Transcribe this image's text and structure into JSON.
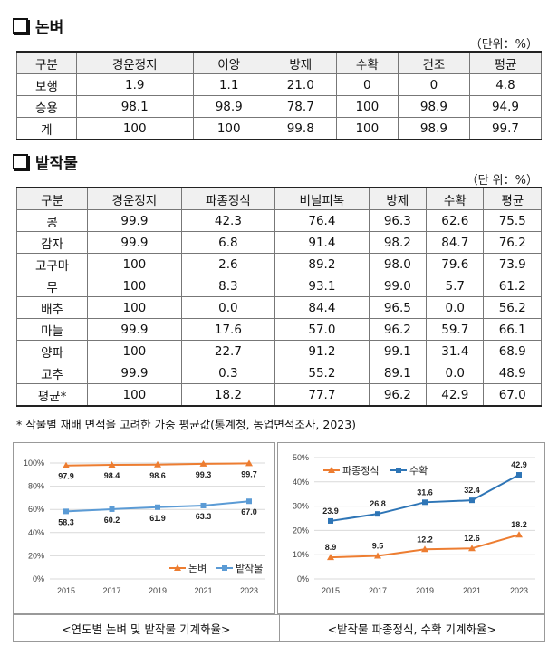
{
  "rice": {
    "title": "논벼",
    "unit": "（단위：%）",
    "headers": [
      "구분",
      "경운정지",
      "이앙",
      "방제",
      "수확",
      "건조",
      "평균"
    ],
    "rows": [
      [
        "보행",
        "1.9",
        "1.1",
        "21.0",
        "0",
        "0",
        "4.8"
      ],
      [
        "승용",
        "98.1",
        "98.9",
        "78.7",
        "100",
        "98.9",
        "94.9"
      ],
      [
        "계",
        "100",
        "100",
        "99.8",
        "100",
        "98.9",
        "99.7"
      ]
    ]
  },
  "field": {
    "title": "밭작물",
    "unit": "（단 위：%）",
    "headers": [
      "구분",
      "경운정지",
      "파종정식",
      "비닐피복",
      "방제",
      "수확",
      "평균"
    ],
    "rows": [
      [
        "콩",
        "99.9",
        "42.3",
        "76.4",
        "96.3",
        "62.6",
        "75.5"
      ],
      [
        "감자",
        "99.9",
        "6.8",
        "91.4",
        "98.2",
        "84.7",
        "76.2"
      ],
      [
        "고구마",
        "100",
        "2.6",
        "89.2",
        "98.0",
        "79.6",
        "73.9"
      ],
      [
        "무",
        "100",
        "8.3",
        "93.1",
        "99.0",
        "5.7",
        "61.2"
      ],
      [
        "배추",
        "100",
        "0.0",
        "84.4",
        "96.5",
        "0.0",
        "56.2"
      ],
      [
        "마늘",
        "99.9",
        "17.6",
        "57.0",
        "96.2",
        "59.7",
        "66.1"
      ],
      [
        "양파",
        "100",
        "22.7",
        "91.2",
        "99.1",
        "31.4",
        "68.9"
      ],
      [
        "고추",
        "99.9",
        "0.3",
        "55.2",
        "89.1",
        "0.0",
        "48.9"
      ],
      [
        "평균*",
        "100",
        "18.2",
        "77.7",
        "96.2",
        "42.9",
        "67.0"
      ]
    ]
  },
  "note": "* 작물별 재배 면적을 고려한 가중 평균값(통계청, 농업면적조사, 2023)",
  "captions": {
    "left": "<연도별 논벼 및 밭작물 기계화율>",
    "right": "<밭작물 파종정식, 수확 기계화율>"
  },
  "chart_data": [
    {
      "type": "line",
      "x": [
        2015,
        2017,
        2019,
        2021,
        2023
      ],
      "ylim": [
        0,
        100
      ],
      "yticks": [
        "0%",
        "20%",
        "40%",
        "60%",
        "80%",
        "100%"
      ],
      "series": [
        {
          "name": "논벼",
          "values": [
            97.9,
            98.4,
            98.6,
            99.3,
            99.7
          ],
          "labels": [
            "97.9",
            "98.4",
            "98.6",
            "99.3",
            "99.7"
          ],
          "color": "#ED7D31",
          "marker": "triangle"
        },
        {
          "name": "밭작물",
          "values": [
            58.3,
            60.2,
            61.9,
            63.3,
            67.0
          ],
          "labels": [
            "58.3",
            "60.2",
            "61.9",
            "63.3",
            "67.0"
          ],
          "color": "#5B9BD5",
          "marker": "square"
        }
      ],
      "legend": "bottom-right"
    },
    {
      "type": "line",
      "x": [
        2015,
        2017,
        2019,
        2021,
        2023
      ],
      "ylim": [
        0,
        50
      ],
      "yticks": [
        "0%",
        "10%",
        "20%",
        "30%",
        "40%",
        "50%"
      ],
      "series": [
        {
          "name": "파종정식",
          "values": [
            8.9,
            9.5,
            12.2,
            12.6,
            18.2
          ],
          "labels": [
            "8.9",
            "9.5",
            "12.2",
            "12.6",
            "18.2"
          ],
          "color": "#ED7D31",
          "marker": "triangle"
        },
        {
          "name": "수확",
          "values": [
            23.9,
            26.8,
            31.6,
            32.4,
            42.9
          ],
          "labels": [
            "23.9",
            "26.8",
            "31.6",
            "32.4",
            "42.9"
          ],
          "color": "#2E75B6",
          "marker": "square"
        }
      ],
      "legend": "top-left"
    }
  ]
}
